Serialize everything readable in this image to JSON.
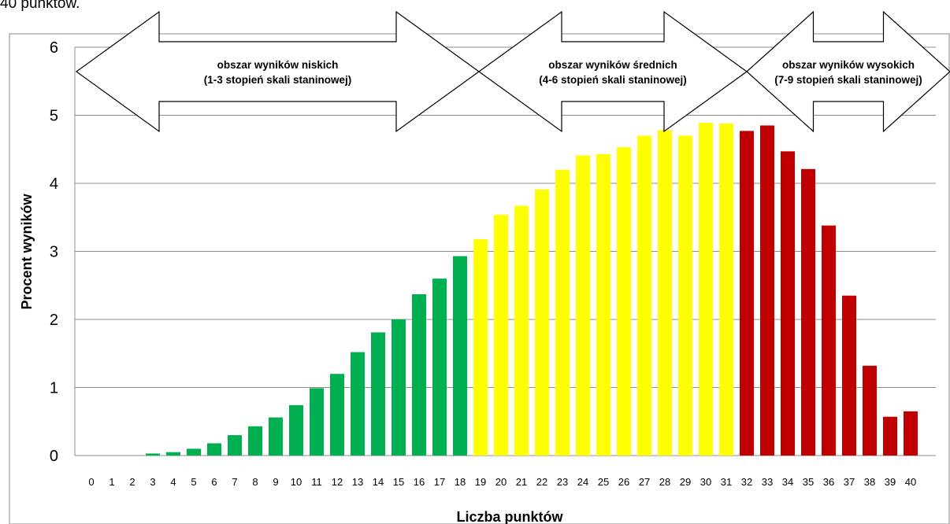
{
  "caption": "40 punktów.",
  "chart_data": {
    "type": "bar",
    "xlabel": "Liczba punktów",
    "ylabel": "Procent wyników",
    "ylim": [
      0,
      6
    ],
    "yticks": [
      "0",
      "1",
      "2",
      "3",
      "4",
      "5",
      "6"
    ],
    "grid": true,
    "categories": [
      "0",
      "1",
      "2",
      "3",
      "4",
      "5",
      "6",
      "7",
      "8",
      "9",
      "10",
      "11",
      "12",
      "13",
      "14",
      "15",
      "16",
      "17",
      "18",
      "19",
      "20",
      "21",
      "22",
      "23",
      "24",
      "25",
      "26",
      "27",
      "28",
      "29",
      "30",
      "31",
      "32",
      "33",
      "34",
      "35",
      "36",
      "37",
      "38",
      "39",
      "40"
    ],
    "values": [
      0,
      0,
      0,
      0.03,
      0.05,
      0.1,
      0.18,
      0.3,
      0.43,
      0.56,
      0.74,
      0.99,
      1.2,
      1.52,
      1.81,
      2.0,
      2.37,
      2.6,
      2.93,
      3.18,
      3.54,
      3.67,
      3.91,
      4.2,
      4.41,
      4.43,
      4.53,
      4.7,
      4.78,
      4.7,
      4.89,
      4.88,
      4.77,
      4.85,
      4.47,
      4.21,
      3.38,
      2.35,
      1.32,
      0.57,
      0.65
    ],
    "bands": [
      {
        "from": 0,
        "to": 18,
        "color": "#00b050",
        "label_line1": "obszar wyników niskich",
        "label_line2": "(1-3 stopień skali staninowej)"
      },
      {
        "from": 19,
        "to": 31,
        "color": "#ffff00",
        "label_line1": "obszar wyników średnich",
        "label_line2": "(4-6 stopień skali staninowej)"
      },
      {
        "from": 32,
        "to": 40,
        "color": "#c00000",
        "label_line1": "obszar wyników wysokich",
        "label_line2": "(7-9 stopień skali staninowej)"
      }
    ]
  }
}
